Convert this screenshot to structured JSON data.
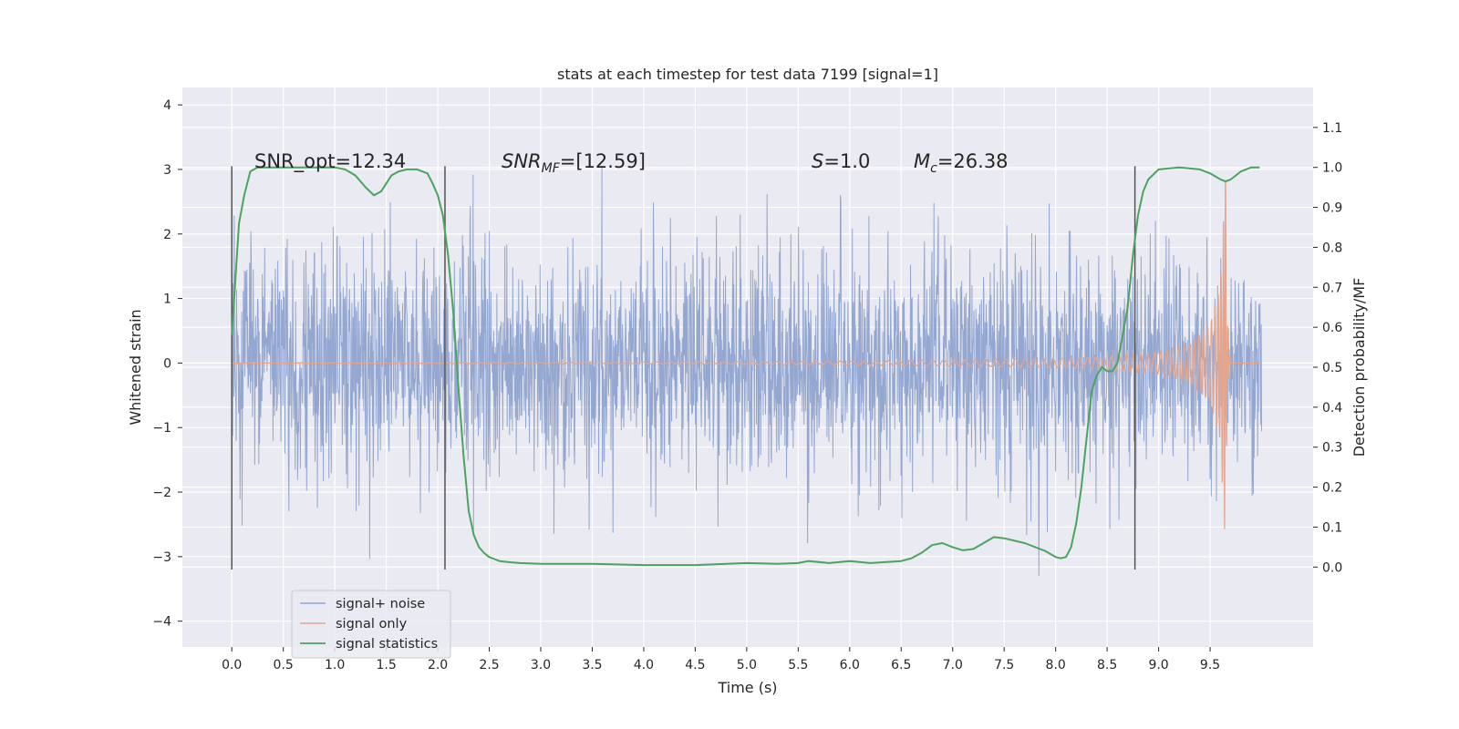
{
  "chart_data": {
    "type": "line",
    "title": "stats at each timestep for test data 7199 [signal=1]",
    "xlabel": "Time (s)",
    "ylabel": "Whitened strain",
    "ylabel_right": "Detection probability/MF",
    "xlim": [
      -0.48,
      10.5
    ],
    "ylim": [
      -4.4,
      4.27
    ],
    "ylim_right": [
      -0.2,
      1.2
    ],
    "xticks": [
      "0.0",
      "0.5",
      "1.0",
      "1.5",
      "2.0",
      "2.5",
      "3.0",
      "3.5",
      "4.0",
      "4.5",
      "5.0",
      "5.5",
      "6.0",
      "6.5",
      "7.0",
      "7.5",
      "8.0",
      "8.5",
      "9.0",
      "9.5"
    ],
    "yticks": [
      "4",
      "3",
      "2",
      "1",
      "0",
      "−1",
      "−2",
      "−3",
      "−4"
    ],
    "yticks_right": [
      "1.1",
      "1.0",
      "0.9",
      "0.8",
      "0.7",
      "0.6",
      "0.5",
      "0.4",
      "0.3",
      "0.2",
      "0.1",
      "0.0"
    ],
    "grid": true,
    "legend_position": "lower-left",
    "colors": {
      "noise": "#8fa3cf",
      "signal": "#e5a58d",
      "stats": "#4ca35f",
      "vline": "#555555",
      "plot_bg": "#eaeaf2",
      "grid": "#ffffff"
    },
    "annotations": {
      "snr_opt": "SNR_opt=12.34",
      "snr_mf_main": "SNR",
      "snr_mf_sub": "MF",
      "snr_mf_value": "=[12.59]",
      "s_main": "S",
      "s_value": "=1.0",
      "mc_main": "M",
      "mc_sub": "c",
      "mc_value": "=26.38"
    },
    "vertical_lines_x": [
      0.0,
      2.07,
      8.77
    ],
    "vertical_lines_y_range": [
      -3.2,
      3.05
    ],
    "series": [
      {
        "name": "signal+ noise",
        "description": "whitened noise, std about 0.9, range about -4 to 4",
        "x_range": [
          0.0,
          10.0
        ],
        "std": 0.9
      },
      {
        "name": "signal only",
        "description": "chirp waveform merging near t = 9.65 s",
        "merger_time": 9.65,
        "envelope": [
          [
            0.0,
            0.0
          ],
          [
            5.0,
            0.02
          ],
          [
            6.0,
            0.03
          ],
          [
            7.0,
            0.05
          ],
          [
            8.0,
            0.07
          ],
          [
            8.5,
            0.1
          ],
          [
            9.0,
            0.17
          ],
          [
            9.3,
            0.3
          ],
          [
            9.5,
            0.6
          ],
          [
            9.6,
            1.2
          ],
          [
            9.65,
            3.0
          ]
        ]
      },
      {
        "name": "signal statistics",
        "x": [
          0.0,
          0.03,
          0.07,
          0.12,
          0.18,
          0.25,
          0.4,
          0.6,
          0.8,
          1.0,
          1.1,
          1.2,
          1.3,
          1.38,
          1.45,
          1.5,
          1.55,
          1.62,
          1.7,
          1.8,
          1.9,
          1.95,
          2.0,
          2.05,
          2.1,
          2.15,
          2.2,
          2.25,
          2.3,
          2.35,
          2.4,
          2.45,
          2.5,
          2.55,
          2.6,
          2.7,
          2.8,
          3.0,
          3.5,
          4.0,
          4.5,
          5.0,
          5.3,
          5.5,
          5.6,
          5.8,
          6.0,
          6.2,
          6.5,
          6.6,
          6.7,
          6.8,
          6.9,
          7.0,
          7.1,
          7.2,
          7.3,
          7.4,
          7.5,
          7.7,
          7.9,
          8.0,
          8.05,
          8.1,
          8.15,
          8.2,
          8.25,
          8.3,
          8.35,
          8.4,
          8.45,
          8.5,
          8.55,
          8.6,
          8.65,
          8.7,
          8.75,
          8.8,
          8.85,
          8.9,
          9.0,
          9.2,
          9.4,
          9.5,
          9.6,
          9.65,
          9.7,
          9.8,
          9.9,
          9.98
        ],
        "y": [
          0.58,
          0.7,
          0.86,
          0.93,
          0.99,
          1.0,
          1.0,
          1.0,
          1.0,
          1.0,
          0.995,
          0.98,
          0.95,
          0.93,
          0.94,
          0.96,
          0.98,
          0.99,
          0.995,
          0.995,
          0.985,
          0.96,
          0.93,
          0.88,
          0.78,
          0.64,
          0.45,
          0.28,
          0.14,
          0.08,
          0.05,
          0.035,
          0.025,
          0.02,
          0.015,
          0.012,
          0.01,
          0.008,
          0.008,
          0.005,
          0.005,
          0.01,
          0.008,
          0.01,
          0.015,
          0.01,
          0.015,
          0.01,
          0.015,
          0.022,
          0.036,
          0.055,
          0.06,
          0.05,
          0.042,
          0.045,
          0.06,
          0.075,
          0.072,
          0.06,
          0.04,
          0.025,
          0.022,
          0.025,
          0.05,
          0.11,
          0.2,
          0.32,
          0.44,
          0.48,
          0.5,
          0.49,
          0.49,
          0.51,
          0.58,
          0.65,
          0.78,
          0.88,
          0.94,
          0.97,
          0.995,
          1.0,
          0.995,
          0.985,
          0.97,
          0.965,
          0.97,
          0.99,
          1.0,
          1.0
        ]
      }
    ]
  }
}
